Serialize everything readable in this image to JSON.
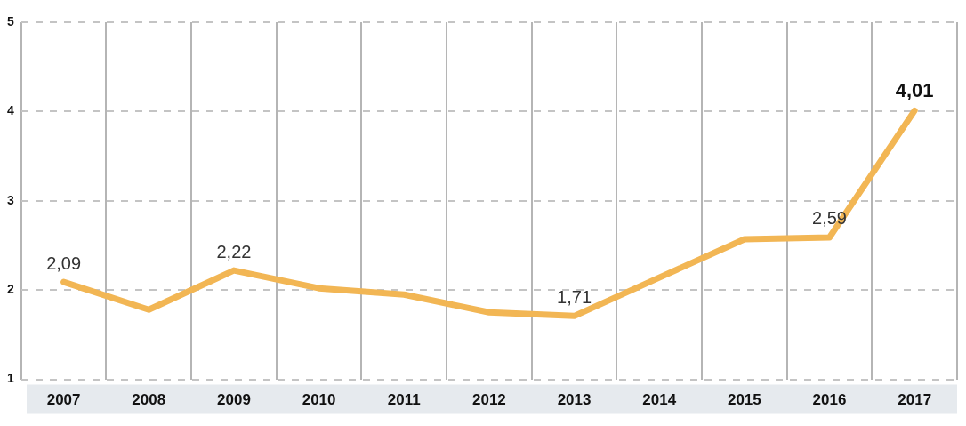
{
  "chart_data": {
    "type": "line",
    "categories": [
      "2007",
      "2008",
      "2009",
      "2010",
      "2011",
      "2012",
      "2013",
      "2014",
      "2015",
      "2016",
      "2017"
    ],
    "series": [
      {
        "color": "#f2b654",
        "values": [
          2.09,
          1.78,
          2.22,
          2.02,
          1.95,
          1.75,
          1.71,
          2.14,
          2.57,
          2.59,
          4.01
        ],
        "value_labels": [
          "2,09",
          null,
          "2,22",
          null,
          null,
          null,
          "1,71",
          null,
          null,
          "2,59",
          "4,01"
        ]
      }
    ],
    "ylim": [
      1,
      5
    ],
    "yticks": [
      1,
      2,
      3,
      4,
      5
    ],
    "grid": true,
    "legend": false,
    "marker": "none",
    "line_style": "solid"
  }
}
